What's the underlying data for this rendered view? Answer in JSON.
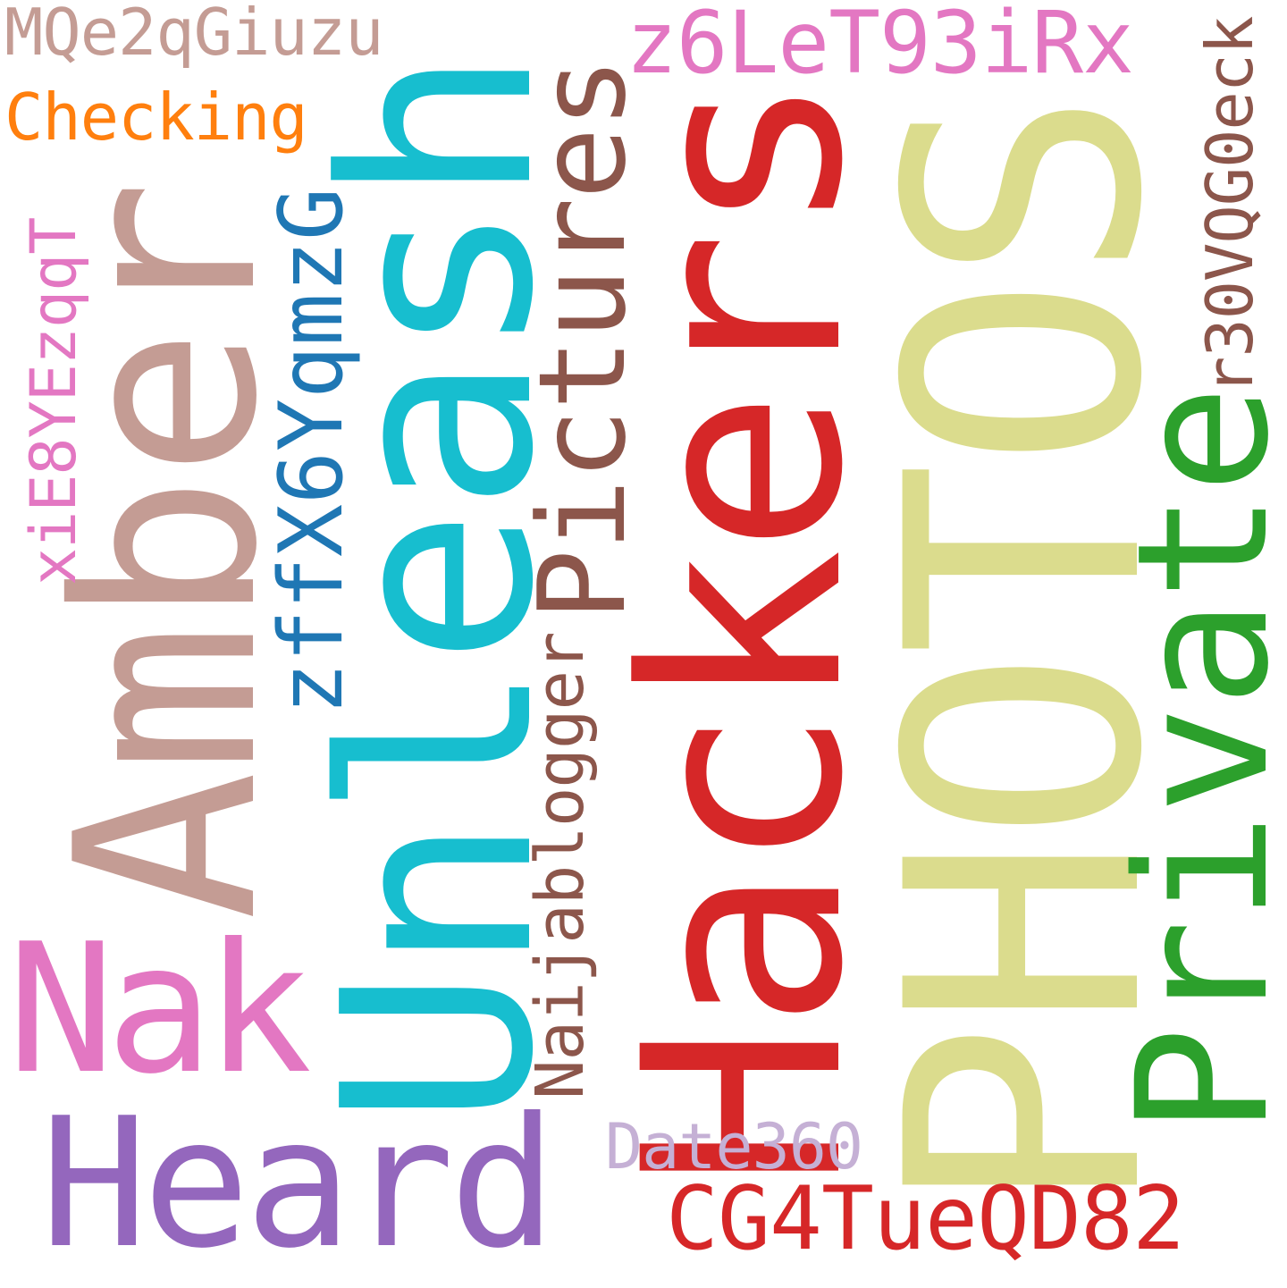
{
  "words": {
    "photos": {
      "text": "PHOTOS",
      "color": "#dbdc8d"
    },
    "hackers": {
      "text": "Hackers",
      "color": "#d62728"
    },
    "unleash": {
      "text": "Unleash",
      "color": "#17becf"
    },
    "amber": {
      "text": "Amber",
      "color": "#c49c94"
    },
    "private": {
      "text": "Private",
      "color": "#2ca02c"
    },
    "pictures": {
      "text": "Pictures",
      "color": "#8c564b"
    },
    "nak": {
      "text": "Nak",
      "color": "#e377c2"
    },
    "heard": {
      "text": "Heard",
      "color": "#9467bd"
    },
    "zffx6yqmzg": {
      "text": "zffX6YqmzG",
      "color": "#1f77b4"
    },
    "naijablogger": {
      "text": "Naijablogger",
      "color": "#8c564b"
    },
    "cg4tueqd82": {
      "text": "CG4TueQD82",
      "color": "#d62728"
    },
    "z6let93irx": {
      "text": "z6LeT93iRx",
      "color": "#e377c2"
    },
    "r30vqg0eck": {
      "text": "r30VQG0eck",
      "color": "#8c564b"
    },
    "xie8yezqqt": {
      "text": "xiE8YEzqqT",
      "color": "#e377c2"
    },
    "mqe2qgiuzu": {
      "text": "MQe2qGiuzu",
      "color": "#c49c94"
    },
    "checking": {
      "text": "Checking",
      "color": "#ff7f0e"
    },
    "date360": {
      "text": "Date360",
      "color": "#c5b0d5"
    }
  }
}
